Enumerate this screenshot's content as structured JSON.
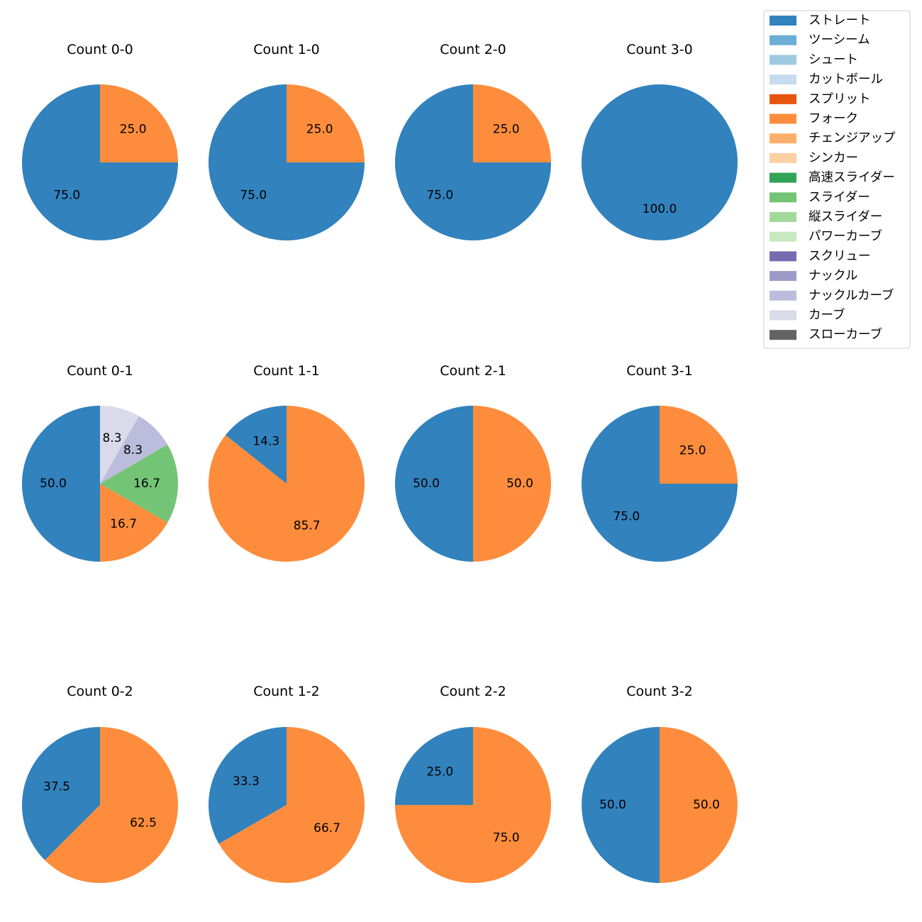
{
  "chart_data": {
    "type": "pie",
    "legend": {
      "placement": "top-right",
      "entries": [
        {
          "name": "ストレート",
          "color": "#3182bd"
        },
        {
          "name": "ツーシーム",
          "color": "#6baed6"
        },
        {
          "name": "シュート",
          "color": "#9ecae1"
        },
        {
          "name": "カットボール",
          "color": "#c6dbef"
        },
        {
          "name": "スプリット",
          "color": "#e6550d"
        },
        {
          "name": "フォーク",
          "color": "#fd8d3c"
        },
        {
          "name": "チェンジアップ",
          "color": "#fdae6b"
        },
        {
          "name": "シンカー",
          "color": "#fdd0a2"
        },
        {
          "name": "高速スライダー",
          "color": "#31a354"
        },
        {
          "name": "スライダー",
          "color": "#74c476"
        },
        {
          "name": "縦スライダー",
          "color": "#a1d99b"
        },
        {
          "name": "パワーカーブ",
          "color": "#c7e9c0"
        },
        {
          "name": "スクリュー",
          "color": "#756bb1"
        },
        {
          "name": "ナックル",
          "color": "#9e9ac8"
        },
        {
          "name": "ナックルカーブ",
          "color": "#bcbddc"
        },
        {
          "name": "カーブ",
          "color": "#dadaeb"
        },
        {
          "name": "スローカーブ",
          "color": "#636363"
        }
      ]
    },
    "charts": [
      {
        "title": "Count 0-0",
        "slices": [
          {
            "label": "ストレート",
            "value": 75.0,
            "text": "75.0"
          },
          {
            "label": "フォーク",
            "value": 25.0,
            "text": "25.0"
          }
        ]
      },
      {
        "title": "Count 1-0",
        "slices": [
          {
            "label": "ストレート",
            "value": 75.0,
            "text": "75.0"
          },
          {
            "label": "フォーク",
            "value": 25.0,
            "text": "25.0"
          }
        ]
      },
      {
        "title": "Count 2-0",
        "slices": [
          {
            "label": "ストレート",
            "value": 75.0,
            "text": "75.0"
          },
          {
            "label": "フォーク",
            "value": 25.0,
            "text": "25.0"
          }
        ]
      },
      {
        "title": "Count 3-0",
        "slices": [
          {
            "label": "ストレート",
            "value": 100.0,
            "text": "100.0"
          }
        ]
      },
      {
        "title": "Count 0-1",
        "slices": [
          {
            "label": "ストレート",
            "value": 50.0,
            "text": "50.0"
          },
          {
            "label": "フォーク",
            "value": 16.7,
            "text": "16.7"
          },
          {
            "label": "スライダー",
            "value": 16.7,
            "text": "16.7"
          },
          {
            "label": "ナックルカーブ",
            "value": 8.3,
            "text": "8.3"
          },
          {
            "label": "カーブ",
            "value": 8.3,
            "text": "8.3"
          }
        ]
      },
      {
        "title": "Count 1-1",
        "slices": [
          {
            "label": "ストレート",
            "value": 14.3,
            "text": "14.3"
          },
          {
            "label": "フォーク",
            "value": 85.7,
            "text": "85.7"
          }
        ]
      },
      {
        "title": "Count 2-1",
        "slices": [
          {
            "label": "ストレート",
            "value": 50.0,
            "text": "50.0"
          },
          {
            "label": "フォーク",
            "value": 50.0,
            "text": "50.0"
          }
        ]
      },
      {
        "title": "Count 3-1",
        "slices": [
          {
            "label": "ストレート",
            "value": 75.0,
            "text": "75.0"
          },
          {
            "label": "フォーク",
            "value": 25.0,
            "text": "25.0"
          }
        ]
      },
      {
        "title": "Count 0-2",
        "slices": [
          {
            "label": "ストレート",
            "value": 37.5,
            "text": "37.5"
          },
          {
            "label": "フォーク",
            "value": 62.5,
            "text": "62.5"
          }
        ]
      },
      {
        "title": "Count 1-2",
        "slices": [
          {
            "label": "ストレート",
            "value": 33.3,
            "text": "33.3"
          },
          {
            "label": "フォーク",
            "value": 66.7,
            "text": "66.7"
          }
        ]
      },
      {
        "title": "Count 2-2",
        "slices": [
          {
            "label": "ストレート",
            "value": 25.0,
            "text": "25.0"
          },
          {
            "label": "フォーク",
            "value": 75.0,
            "text": "75.0"
          }
        ]
      },
      {
        "title": "Count 3-2",
        "slices": [
          {
            "label": "ストレート",
            "value": 50.0,
            "text": "50.0"
          },
          {
            "label": "フォーク",
            "value": 50.0,
            "text": "50.0"
          }
        ]
      }
    ]
  }
}
